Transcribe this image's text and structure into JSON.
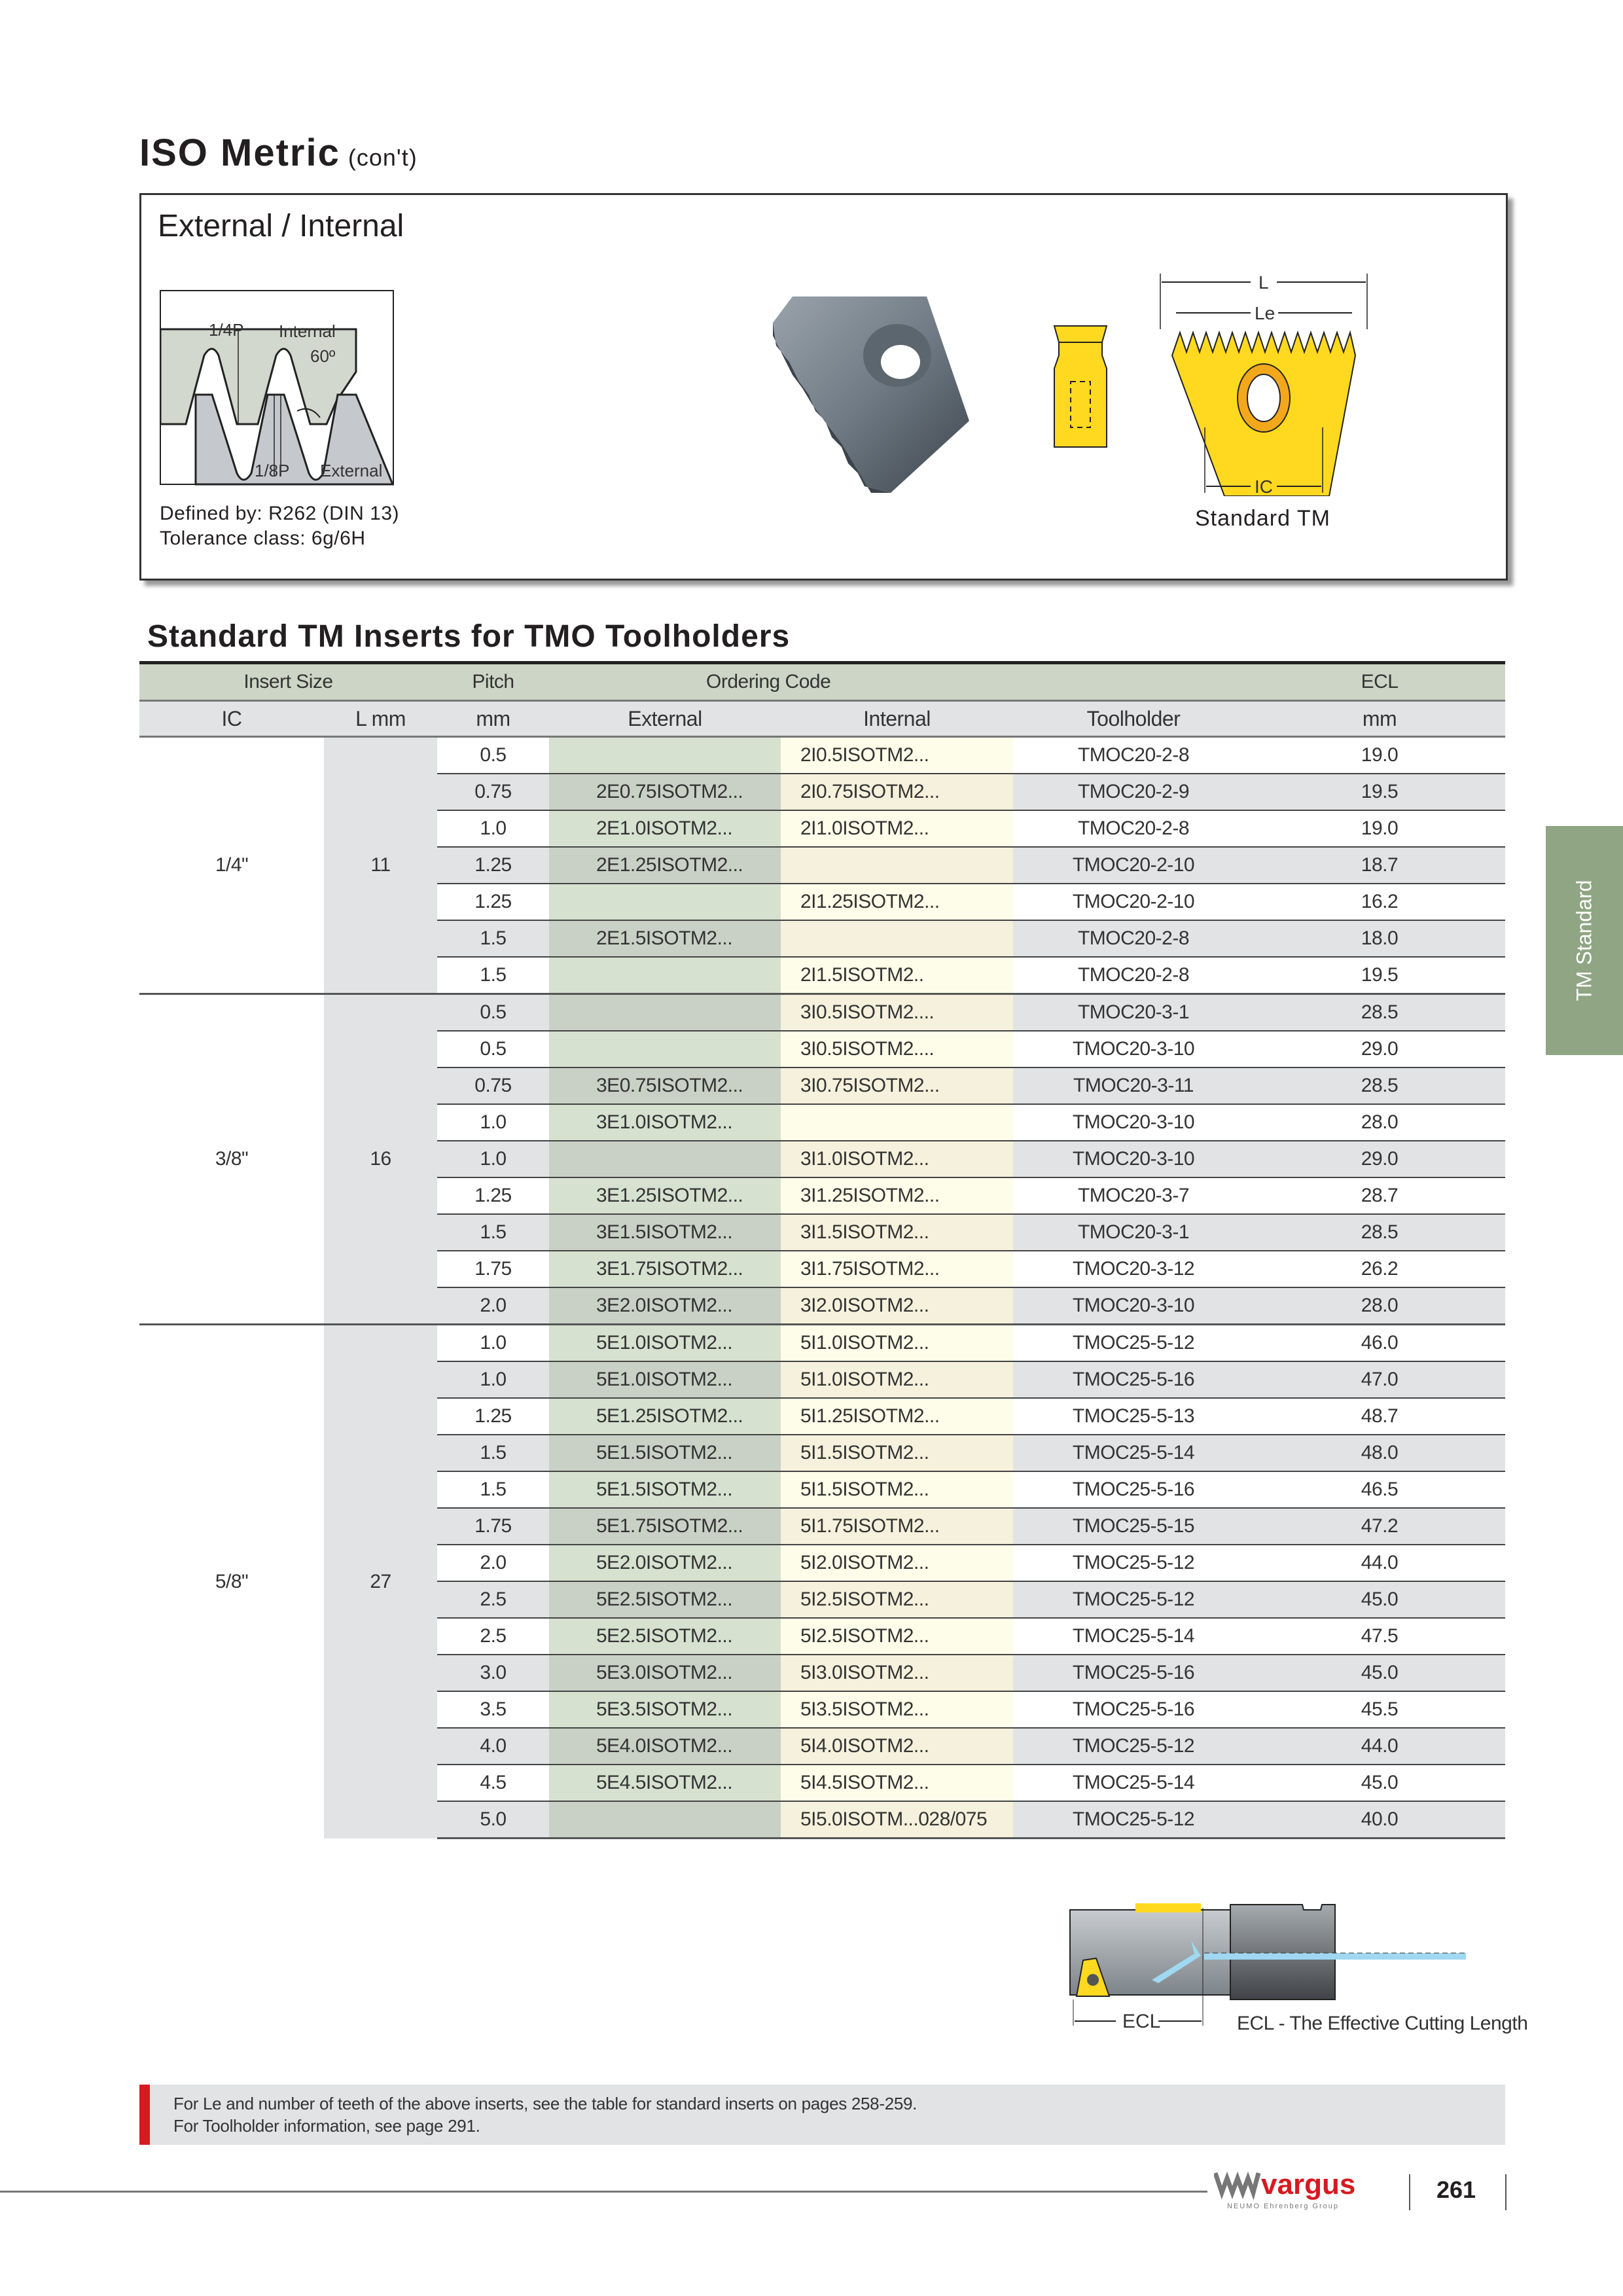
{
  "header": {
    "title": "ISO Metric",
    "subtitle": "(con't)"
  },
  "spec_box": {
    "heading": "External / Internal",
    "diagram": {
      "quarter_p": "1/4P",
      "internal": "Internal",
      "angle": "60º",
      "eighth_p": "1/8P",
      "external": "External"
    },
    "defined_by": "Defined by: R262 (DIN 13)",
    "tolerance": "Tolerance class: 6g/6H",
    "dim_labels": {
      "L": "L",
      "Le": "Le",
      "IC": "IC"
    },
    "standard_tm_label": "Standard TM",
    "insert_color": "#ffd91f"
  },
  "table": {
    "title": "Standard TM Inserts for TMO Toolholders",
    "header1": {
      "insert_size": "Insert Size",
      "pitch": "Pitch",
      "ordering_code": "Ordering Code",
      "ecl": "ECL"
    },
    "header2": {
      "ic": "IC",
      "l": "L mm",
      "pitch": "mm",
      "external": "External",
      "internal": "Internal",
      "toolholder": "Toolholder",
      "ecl": "mm"
    },
    "groups": [
      {
        "ic": "1/4\"",
        "l": "11",
        "rows": [
          [
            "0.5",
            "",
            "2I0.5ISOTM2...",
            "TMOC20-2-8",
            "19.0"
          ],
          [
            "0.75",
            "2E0.75ISOTM2...",
            "2I0.75ISOTM2...",
            "TMOC20-2-9",
            "19.5"
          ],
          [
            "1.0",
            "2E1.0ISOTM2...",
            "2I1.0ISOTM2...",
            "TMOC20-2-8",
            "19.0"
          ],
          [
            "1.25",
            "2E1.25ISOTM2...",
            "",
            "TMOC20-2-10",
            "18.7"
          ],
          [
            "1.25",
            "",
            "2I1.25ISOTM2...",
            "TMOC20-2-10",
            "16.2"
          ],
          [
            "1.5",
            "2E1.5ISOTM2...",
            "",
            "TMOC20-2-8",
            "18.0"
          ],
          [
            "1.5",
            "",
            "2I1.5ISOTM2..",
            "TMOC20-2-8",
            "19.5"
          ]
        ]
      },
      {
        "ic": "3/8\"",
        "l": "16",
        "rows": [
          [
            "0.5",
            "",
            "3I0.5ISOTM2....",
            "TMOC20-3-1",
            "28.5"
          ],
          [
            "0.5",
            "",
            "3I0.5ISOTM2....",
            "TMOC20-3-10",
            "29.0"
          ],
          [
            "0.75",
            "3E0.75ISOTM2...",
            "3I0.75ISOTM2...",
            "TMOC20-3-11",
            "28.5"
          ],
          [
            "1.0",
            "3E1.0ISOTM2...",
            "",
            "TMOC20-3-10",
            "28.0"
          ],
          [
            "1.0",
            "",
            "3I1.0ISOTM2...",
            "TMOC20-3-10",
            "29.0"
          ],
          [
            "1.25",
            "3E1.25ISOTM2...",
            "3I1.25ISOTM2...",
            "TMOC20-3-7",
            "28.7"
          ],
          [
            "1.5",
            "3E1.5ISOTM2...",
            "3I1.5ISOTM2...",
            "TMOC20-3-1",
            "28.5"
          ],
          [
            "1.75",
            "3E1.75ISOTM2...",
            "3I1.75ISOTM2...",
            "TMOC20-3-12",
            "26.2"
          ],
          [
            "2.0",
            "3E2.0ISOTM2...",
            "3I2.0ISOTM2...",
            "TMOC20-3-10",
            "28.0"
          ]
        ]
      },
      {
        "ic": "5/8\"",
        "l": "27",
        "rows": [
          [
            "1.0",
            "5E1.0ISOTM2...",
            "5I1.0ISOTM2...",
            "TMOC25-5-12",
            "46.0"
          ],
          [
            "1.0",
            "5E1.0ISOTM2...",
            "5I1.0ISOTM2...",
            "TMOC25-5-16",
            "47.0"
          ],
          [
            "1.25",
            "5E1.25ISOTM2...",
            "5I1.25ISOTM2...",
            "TMOC25-5-13",
            "48.7"
          ],
          [
            "1.5",
            "5E1.5ISOTM2...",
            "5I1.5ISOTM2...",
            "TMOC25-5-14",
            "48.0"
          ],
          [
            "1.5",
            "5E1.5ISOTM2...",
            "5I1.5ISOTM2...",
            "TMOC25-5-16",
            "46.5"
          ],
          [
            "1.75",
            "5E1.75ISOTM2...",
            "5I1.75ISOTM2...",
            "TMOC25-5-15",
            "47.2"
          ],
          [
            "2.0",
            "5E2.0ISOTM2...",
            "5I2.0ISOTM2...",
            "TMOC25-5-12",
            "44.0"
          ],
          [
            "2.5",
            "5E2.5ISOTM2...",
            "5I2.5ISOTM2...",
            "TMOC25-5-12",
            "45.0"
          ],
          [
            "2.5",
            "5E2.5ISOTM2...",
            "5I2.5ISOTM2...",
            "TMOC25-5-14",
            "47.5"
          ],
          [
            "3.0",
            "5E3.0ISOTM2...",
            "5I3.0ISOTM2...",
            "TMOC25-5-16",
            "45.0"
          ],
          [
            "3.5",
            "5E3.5ISOTM2...",
            "5I3.5ISOTM2...",
            "TMOC25-5-16",
            "45.5"
          ],
          [
            "4.0",
            "5E4.0ISOTM2...",
            "5I4.0ISOTM2...",
            "TMOC25-5-12",
            "44.0"
          ],
          [
            "4.5",
            "5E4.5ISOTM2...",
            "5I4.5ISOTM2...",
            "TMOC25-5-14",
            "45.0"
          ],
          [
            "5.0",
            "",
            "5I5.0ISOTM...028/075",
            "TMOC25-5-12",
            "40.0"
          ]
        ]
      }
    ]
  },
  "side_tab": {
    "label": "TM Standard",
    "color": "#8fa583"
  },
  "ecl_figure": {
    "ecl_label": "ECL",
    "caption": "ECL - The  Effective Cutting Length",
    "coolant_color": "#9fd8f0"
  },
  "note": {
    "line1": "For Le and number of teeth of the above inserts, see the table for standard inserts on pages 258-259.",
    "line2": "For Toolholder information, see page 291.",
    "accent_color": "#d71920"
  },
  "footer": {
    "brand": "vargus",
    "brand_sub": "NEUMO Ehrenberg Group",
    "page_number": "261",
    "brand_color": "#d71920"
  }
}
